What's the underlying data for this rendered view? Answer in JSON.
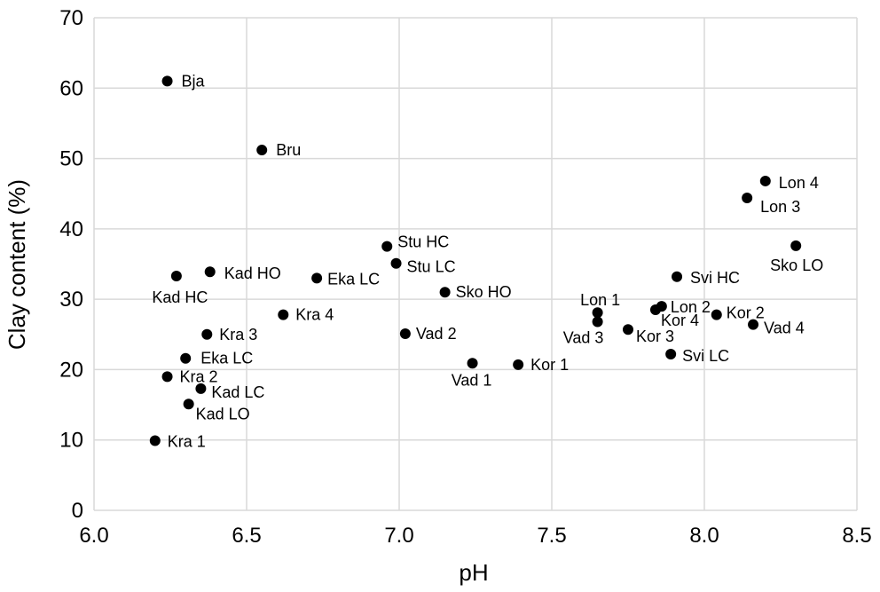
{
  "chart_data": {
    "type": "scatter",
    "title": "",
    "xlabel": "pH",
    "ylabel": "Clay content (%)",
    "xlim": [
      6.0,
      8.5
    ],
    "ylim": [
      0,
      70
    ],
    "xticks": [
      "6.0",
      "6.5",
      "7.0",
      "7.5",
      "8.0",
      "8.5"
    ],
    "yticks": [
      "0",
      "10",
      "20",
      "30",
      "40",
      "50",
      "60",
      "70"
    ],
    "grid": true,
    "legend": "none",
    "marker_color": "#000000",
    "points": [
      {
        "label": "Bja",
        "x": 6.24,
        "y": 61.0
      },
      {
        "label": "Bru",
        "x": 6.55,
        "y": 51.2
      },
      {
        "label": "Kad HC",
        "x": 6.27,
        "y": 33.3
      },
      {
        "label": "Kad HO",
        "x": 6.38,
        "y": 33.9
      },
      {
        "label": "Kra 3",
        "x": 6.37,
        "y": 25.0
      },
      {
        "label": "Eka LC",
        "x": 6.3,
        "y": 21.6
      },
      {
        "label": "Kra 2",
        "x": 6.24,
        "y": 19.0
      },
      {
        "label": "Kad LC",
        "x": 6.35,
        "y": 17.3
      },
      {
        "label": "Kad LO",
        "x": 6.31,
        "y": 15.1
      },
      {
        "label": "Kra 1",
        "x": 6.2,
        "y": 9.9
      },
      {
        "label": "Kra 4",
        "x": 6.62,
        "y": 27.8
      },
      {
        "label": "Eka LC",
        "x": 6.73,
        "y": 33.0
      },
      {
        "label": "Stu HC",
        "x": 6.96,
        "y": 37.5
      },
      {
        "label": "Stu LC",
        "x": 6.99,
        "y": 35.1
      },
      {
        "label": "Sko HO",
        "x": 7.15,
        "y": 31.0
      },
      {
        "label": "Vad 2",
        "x": 7.02,
        "y": 25.1
      },
      {
        "label": "Vad 1",
        "x": 7.24,
        "y": 20.9
      },
      {
        "label": "Kor 1",
        "x": 7.39,
        "y": 20.7
      },
      {
        "label": "Lon 1",
        "x": 7.65,
        "y": 28.1
      },
      {
        "label": "Vad 3",
        "x": 7.65,
        "y": 26.8
      },
      {
        "label": "Kor 3",
        "x": 7.75,
        "y": 25.7
      },
      {
        "label": "Kor 4",
        "x": 7.84,
        "y": 28.5
      },
      {
        "label": "Lon 2",
        "x": 7.86,
        "y": 29.0
      },
      {
        "label": "Svi HC",
        "x": 7.91,
        "y": 33.2
      },
      {
        "label": "Svi LC",
        "x": 7.89,
        "y": 22.2
      },
      {
        "label": "Kor 2",
        "x": 8.04,
        "y": 27.8
      },
      {
        "label": "Vad 4",
        "x": 8.16,
        "y": 26.4
      },
      {
        "label": "Lon 3",
        "x": 8.14,
        "y": 44.4
      },
      {
        "label": "Lon 4",
        "x": 8.2,
        "y": 46.8
      },
      {
        "label": "Sko LO",
        "x": 8.3,
        "y": 37.6
      }
    ]
  }
}
